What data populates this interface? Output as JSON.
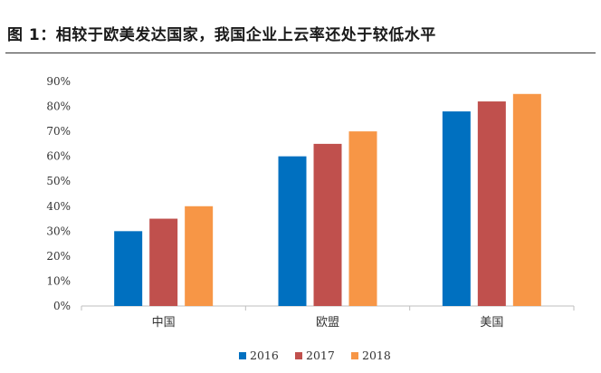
{
  "title": "图 1：相较于欧美发达国家，我国企业上云率还处于较低水平",
  "chart_data": {
    "type": "bar",
    "title": "",
    "xlabel": "",
    "ylabel": "",
    "categories": [
      "中国",
      "欧盟",
      "美国"
    ],
    "series": [
      {
        "name": "2016",
        "values": [
          30,
          60,
          78
        ],
        "color": "#0070c0"
      },
      {
        "name": "2017",
        "values": [
          35,
          65,
          82
        ],
        "color": "#c0504d"
      },
      {
        "name": "2018",
        "values": [
          40,
          70,
          85
        ],
        "color": "#f79646"
      }
    ],
    "ylim": [
      0,
      90
    ],
    "yticks": [
      0,
      10,
      20,
      30,
      40,
      50,
      60,
      70,
      80,
      90
    ],
    "y_tick_suffix": "%",
    "grid": false,
    "legend_position": "bottom"
  }
}
